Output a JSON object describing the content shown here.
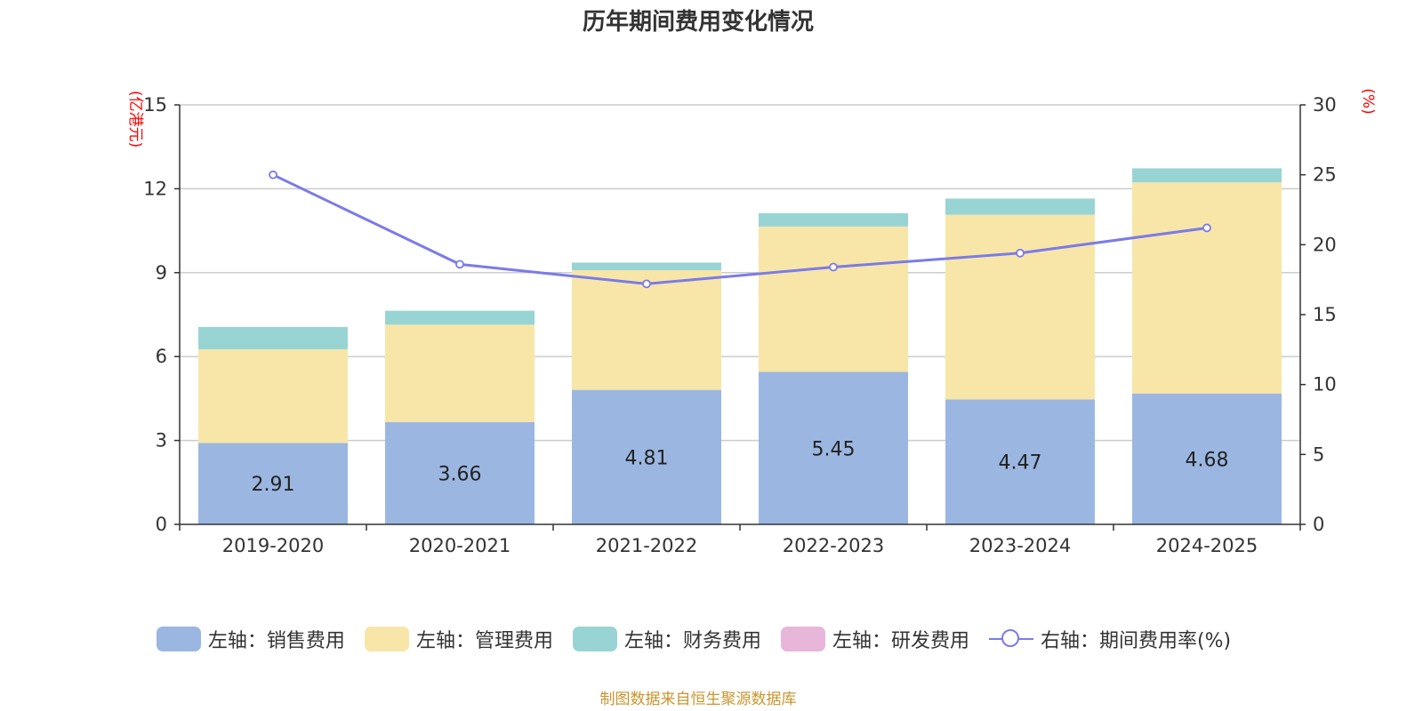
{
  "title": "历年期间费用变化情况",
  "source": "制图数据来自恒生聚源数据库",
  "chart_data": {
    "type": "bar",
    "stacked": true,
    "categories": [
      "2019-2020",
      "2020-2021",
      "2021-2022",
      "2022-2023",
      "2023-2024",
      "2024-2025"
    ],
    "left_axis": {
      "unit": "(亿港元)",
      "ylim": [
        0,
        15
      ],
      "ticks": [
        0,
        3,
        6,
        9,
        12,
        15
      ]
    },
    "right_axis": {
      "unit": "(%)",
      "ylim": [
        0,
        30
      ],
      "ticks": [
        0,
        5,
        10,
        15,
        20,
        25,
        30
      ]
    },
    "grid": true,
    "legend_position": "bottom",
    "series": [
      {
        "name": "左轴：销售费用",
        "axis": "left",
        "color": "#9bb7e1",
        "values": [
          2.91,
          3.66,
          4.81,
          5.45,
          4.47,
          4.68
        ],
        "labels": [
          "2.91",
          "3.66",
          "4.81",
          "5.45",
          "4.47",
          "4.68"
        ]
      },
      {
        "name": "左轴：管理费用",
        "axis": "left",
        "color": "#f7e6a8",
        "values": [
          3.35,
          3.48,
          4.28,
          5.2,
          6.6,
          7.55
        ]
      },
      {
        "name": "左轴：财务费用",
        "axis": "left",
        "color": "#99d4d4",
        "values": [
          0.8,
          0.5,
          0.27,
          0.48,
          0.58,
          0.5
        ]
      },
      {
        "name": "左轴：研发费用",
        "axis": "left",
        "color": "#e8b6d8",
        "values": [
          0,
          0,
          0,
          0,
          0,
          0
        ]
      },
      {
        "name": "右轴：期间费用率(%)",
        "axis": "right",
        "type": "line",
        "color": "#7b7be8",
        "values": [
          25.0,
          18.6,
          17.2,
          18.4,
          19.4,
          21.2
        ]
      }
    ]
  }
}
